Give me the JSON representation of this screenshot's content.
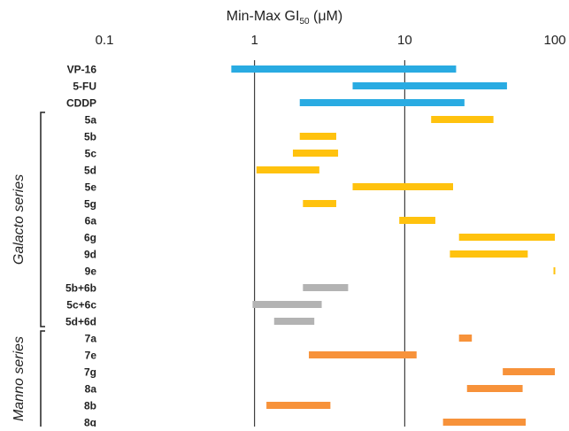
{
  "chart_data": {
    "type": "range-bar",
    "xlabel_prefix": "Min-Max GI",
    "xlabel_subscript": "50",
    "xlabel_suffix": " (μM)",
    "x_scale": "log",
    "xlim": [
      0.1,
      100
    ],
    "x_ticks": [
      0.1,
      1,
      10,
      100
    ],
    "x_tick_labels": [
      "0.1",
      "1",
      "10",
      "100"
    ],
    "gridlines_at": [
      1,
      10
    ],
    "categories": [
      "VP-16",
      "5-FU",
      "CDDP",
      "5a",
      "5b",
      "5c",
      "5d",
      "5e",
      "5g",
      "6a",
      "6g",
      "9d",
      "9e",
      "5b+6b",
      "5c+6c",
      "5d+6d",
      "7a",
      "7e",
      "7g",
      "8a",
      "8b",
      "8g"
    ],
    "series": [
      {
        "color": "#29abe2",
        "items": [
          "VP-16",
          "5-FU",
          "CDDP"
        ]
      },
      {
        "color": "#ffc20e",
        "items": [
          "5a",
          "5b",
          "5c",
          "5d",
          "5e",
          "5g",
          "6a",
          "6g",
          "9d",
          "9e"
        ]
      },
      {
        "color": "#b3b3b3",
        "items": [
          "5b+6b",
          "5c+6c",
          "5d+6d"
        ]
      },
      {
        "color": "#f7923a",
        "items": [
          "7a",
          "7e",
          "7g",
          "8a",
          "8b",
          "8g"
        ]
      }
    ],
    "ranges": [
      [
        0.7,
        22
      ],
      [
        4.5,
        48
      ],
      [
        2,
        25
      ],
      [
        15,
        39
      ],
      [
        2,
        3.5
      ],
      [
        1.8,
        3.6
      ],
      [
        1.03,
        2.7
      ],
      [
        4.5,
        21
      ],
      [
        2.1,
        3.5
      ],
      [
        9.2,
        16
      ],
      [
        23,
        100
      ],
      [
        20,
        66
      ],
      [
        98,
        100
      ],
      [
        2.1,
        4.2
      ],
      [
        0.97,
        2.8
      ],
      [
        1.35,
        2.5
      ],
      [
        23,
        28
      ],
      [
        2.3,
        12
      ],
      [
        45,
        100
      ],
      [
        26,
        61
      ],
      [
        1.2,
        3.2
      ],
      [
        18,
        64
      ]
    ],
    "groups": [
      {
        "label": "Galacto series",
        "first": "5a",
        "last": "5d+6d"
      },
      {
        "label": "Manno series",
        "first": "7a",
        "last": "8g"
      }
    ]
  }
}
